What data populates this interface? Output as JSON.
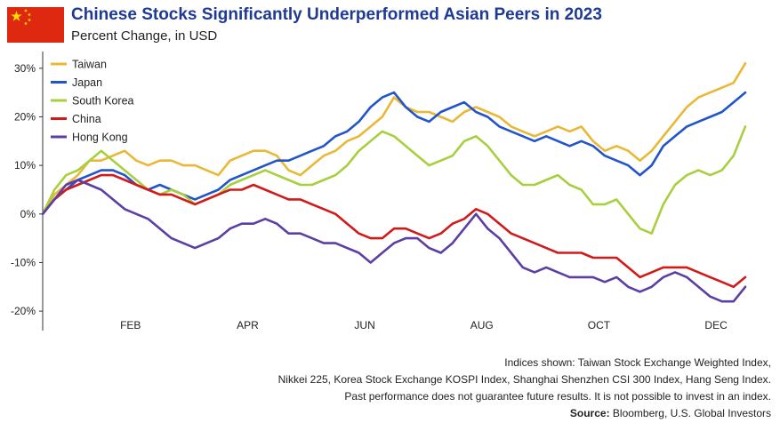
{
  "header": {
    "title": "Chinese Stocks Significantly Underperformed Asian Peers in 2023",
    "subtitle": "Percent Change, in USD",
    "flag_icon": "china-flag-icon",
    "flag_color": "#de2910",
    "star_color": "#ffde00"
  },
  "notes": {
    "line1": "Indices shown: Taiwan Stock Exchange Weighted Index,",
    "line2": "Nikkei 225, Korea Stock Exchange KOSPI Index, Shanghai Shenzhen CSI 300 Index, Hang Seng Index.",
    "line3": "Past performance does not guarantee future results. It is not possible to invest in an index.",
    "source_label": "Source:",
    "source_text": " Bloomberg, U.S. Global Investors"
  },
  "chart_data": {
    "type": "line",
    "title": "Chinese Stocks Significantly Underperformed Asian Peers in 2023",
    "subtitle": "Percent Change, in USD",
    "xlabel": "",
    "ylabel": "",
    "x_ticks": [
      {
        "label": "FEB",
        "month": 1.5
      },
      {
        "label": "APR",
        "month": 3.5
      },
      {
        "label": "JUN",
        "month": 5.5
      },
      {
        "label": "AUG",
        "month": 7.5
      },
      {
        "label": "OCT",
        "month": 9.5
      },
      {
        "label": "DEC",
        "month": 11.5
      }
    ],
    "y_ticks": [
      {
        "label": "30%",
        "value": 30
      },
      {
        "label": "20%",
        "value": 20
      },
      {
        "label": "10%",
        "value": 10
      },
      {
        "label": "0%",
        "value": 0
      },
      {
        "label": "-10%",
        "value": -10
      },
      {
        "label": "-20%",
        "value": -20
      }
    ],
    "xlim": [
      0,
      12
    ],
    "ylim": [
      -24,
      36
    ],
    "grid": false,
    "legend_position": "top-left",
    "series": [
      {
        "name": "Taiwan",
        "color": "#e8b836",
        "points": [
          [
            0,
            0
          ],
          [
            0.2,
            4
          ],
          [
            0.4,
            6
          ],
          [
            0.6,
            8
          ],
          [
            0.8,
            11
          ],
          [
            1.0,
            11
          ],
          [
            1.2,
            12
          ],
          [
            1.4,
            13
          ],
          [
            1.6,
            11
          ],
          [
            1.8,
            10
          ],
          [
            2.0,
            11
          ],
          [
            2.2,
            11
          ],
          [
            2.4,
            10
          ],
          [
            2.6,
            10
          ],
          [
            2.8,
            9
          ],
          [
            3.0,
            8
          ],
          [
            3.2,
            11
          ],
          [
            3.4,
            12
          ],
          [
            3.6,
            13
          ],
          [
            3.8,
            13
          ],
          [
            4.0,
            12
          ],
          [
            4.2,
            9
          ],
          [
            4.4,
            8
          ],
          [
            4.6,
            10
          ],
          [
            4.8,
            12
          ],
          [
            5.0,
            13
          ],
          [
            5.2,
            15
          ],
          [
            5.4,
            16
          ],
          [
            5.6,
            18
          ],
          [
            5.8,
            20
          ],
          [
            6.0,
            24
          ],
          [
            6.2,
            22
          ],
          [
            6.4,
            21
          ],
          [
            6.6,
            21
          ],
          [
            6.8,
            20
          ],
          [
            7.0,
            19
          ],
          [
            7.2,
            21
          ],
          [
            7.4,
            22
          ],
          [
            7.6,
            21
          ],
          [
            7.8,
            20
          ],
          [
            8.0,
            18
          ],
          [
            8.2,
            17
          ],
          [
            8.4,
            16
          ],
          [
            8.6,
            17
          ],
          [
            8.8,
            18
          ],
          [
            9.0,
            17
          ],
          [
            9.2,
            18
          ],
          [
            9.4,
            15
          ],
          [
            9.6,
            13
          ],
          [
            9.8,
            14
          ],
          [
            10.0,
            13
          ],
          [
            10.2,
            11
          ],
          [
            10.4,
            13
          ],
          [
            10.6,
            16
          ],
          [
            10.8,
            19
          ],
          [
            11.0,
            22
          ],
          [
            11.2,
            24
          ],
          [
            11.4,
            25
          ],
          [
            11.6,
            26
          ],
          [
            11.8,
            27
          ],
          [
            12.0,
            31
          ]
        ]
      },
      {
        "name": "Japan",
        "color": "#2155c9",
        "points": [
          [
            0,
            0
          ],
          [
            0.2,
            3
          ],
          [
            0.4,
            5
          ],
          [
            0.6,
            7
          ],
          [
            0.8,
            8
          ],
          [
            1.0,
            9
          ],
          [
            1.2,
            9
          ],
          [
            1.4,
            8
          ],
          [
            1.6,
            6
          ],
          [
            1.8,
            5
          ],
          [
            2.0,
            6
          ],
          [
            2.2,
            5
          ],
          [
            2.4,
            4
          ],
          [
            2.6,
            3
          ],
          [
            2.8,
            4
          ],
          [
            3.0,
            5
          ],
          [
            3.2,
            7
          ],
          [
            3.4,
            8
          ],
          [
            3.6,
            9
          ],
          [
            3.8,
            10
          ],
          [
            4.0,
            11
          ],
          [
            4.2,
            11
          ],
          [
            4.4,
            12
          ],
          [
            4.6,
            13
          ],
          [
            4.8,
            14
          ],
          [
            5.0,
            16
          ],
          [
            5.2,
            17
          ],
          [
            5.4,
            19
          ],
          [
            5.6,
            22
          ],
          [
            5.8,
            24
          ],
          [
            6.0,
            25
          ],
          [
            6.2,
            22
          ],
          [
            6.4,
            20
          ],
          [
            6.6,
            19
          ],
          [
            6.8,
            21
          ],
          [
            7.0,
            22
          ],
          [
            7.2,
            23
          ],
          [
            7.4,
            21
          ],
          [
            7.6,
            20
          ],
          [
            7.8,
            18
          ],
          [
            8.0,
            17
          ],
          [
            8.2,
            16
          ],
          [
            8.4,
            15
          ],
          [
            8.6,
            16
          ],
          [
            8.8,
            15
          ],
          [
            9.0,
            14
          ],
          [
            9.2,
            15
          ],
          [
            9.4,
            14
          ],
          [
            9.6,
            12
          ],
          [
            9.8,
            11
          ],
          [
            10.0,
            10
          ],
          [
            10.2,
            8
          ],
          [
            10.4,
            10
          ],
          [
            10.6,
            14
          ],
          [
            10.8,
            16
          ],
          [
            11.0,
            18
          ],
          [
            11.2,
            19
          ],
          [
            11.4,
            20
          ],
          [
            11.6,
            21
          ],
          [
            11.8,
            23
          ],
          [
            12.0,
            25
          ]
        ]
      },
      {
        "name": "South Korea",
        "color": "#a8cf3d",
        "points": [
          [
            0,
            0
          ],
          [
            0.2,
            5
          ],
          [
            0.4,
            8
          ],
          [
            0.6,
            9
          ],
          [
            0.8,
            11
          ],
          [
            1.0,
            13
          ],
          [
            1.2,
            11
          ],
          [
            1.4,
            9
          ],
          [
            1.6,
            7
          ],
          [
            1.8,
            5
          ],
          [
            2.0,
            4
          ],
          [
            2.2,
            5
          ],
          [
            2.4,
            4
          ],
          [
            2.6,
            2
          ],
          [
            2.8,
            3
          ],
          [
            3.0,
            4
          ],
          [
            3.2,
            6
          ],
          [
            3.4,
            7
          ],
          [
            3.6,
            8
          ],
          [
            3.8,
            9
          ],
          [
            4.0,
            8
          ],
          [
            4.2,
            7
          ],
          [
            4.4,
            6
          ],
          [
            4.6,
            6
          ],
          [
            4.8,
            7
          ],
          [
            5.0,
            8
          ],
          [
            5.2,
            10
          ],
          [
            5.4,
            13
          ],
          [
            5.6,
            15
          ],
          [
            5.8,
            17
          ],
          [
            6.0,
            16
          ],
          [
            6.2,
            14
          ],
          [
            6.4,
            12
          ],
          [
            6.6,
            10
          ],
          [
            6.8,
            11
          ],
          [
            7.0,
            12
          ],
          [
            7.2,
            15
          ],
          [
            7.4,
            16
          ],
          [
            7.6,
            14
          ],
          [
            7.8,
            11
          ],
          [
            8.0,
            8
          ],
          [
            8.2,
            6
          ],
          [
            8.4,
            6
          ],
          [
            8.6,
            7
          ],
          [
            8.8,
            8
          ],
          [
            9.0,
            6
          ],
          [
            9.2,
            5
          ],
          [
            9.4,
            2
          ],
          [
            9.6,
            2
          ],
          [
            9.8,
            3
          ],
          [
            10.0,
            0
          ],
          [
            10.2,
            -3
          ],
          [
            10.4,
            -4
          ],
          [
            10.6,
            2
          ],
          [
            10.8,
            6
          ],
          [
            11.0,
            8
          ],
          [
            11.2,
            9
          ],
          [
            11.4,
            8
          ],
          [
            11.6,
            9
          ],
          [
            11.8,
            12
          ],
          [
            12.0,
            18
          ]
        ]
      },
      {
        "name": "China",
        "color": "#d11a1a",
        "points": [
          [
            0,
            0
          ],
          [
            0.2,
            3
          ],
          [
            0.4,
            5
          ],
          [
            0.6,
            6
          ],
          [
            0.8,
            7
          ],
          [
            1.0,
            8
          ],
          [
            1.2,
            8
          ],
          [
            1.4,
            7
          ],
          [
            1.6,
            6
          ],
          [
            1.8,
            5
          ],
          [
            2.0,
            4
          ],
          [
            2.2,
            4
          ],
          [
            2.4,
            3
          ],
          [
            2.6,
            2
          ],
          [
            2.8,
            3
          ],
          [
            3.0,
            4
          ],
          [
            3.2,
            5
          ],
          [
            3.4,
            5
          ],
          [
            3.6,
            6
          ],
          [
            3.8,
            5
          ],
          [
            4.0,
            4
          ],
          [
            4.2,
            3
          ],
          [
            4.4,
            3
          ],
          [
            4.6,
            2
          ],
          [
            4.8,
            1
          ],
          [
            5.0,
            0
          ],
          [
            5.2,
            -2
          ],
          [
            5.4,
            -4
          ],
          [
            5.6,
            -5
          ],
          [
            5.8,
            -5
          ],
          [
            6.0,
            -3
          ],
          [
            6.2,
            -3
          ],
          [
            6.4,
            -4
          ],
          [
            6.6,
            -5
          ],
          [
            6.8,
            -4
          ],
          [
            7.0,
            -2
          ],
          [
            7.2,
            -1
          ],
          [
            7.4,
            1
          ],
          [
            7.6,
            0
          ],
          [
            7.8,
            -2
          ],
          [
            8.0,
            -4
          ],
          [
            8.2,
            -5
          ],
          [
            8.4,
            -6
          ],
          [
            8.6,
            -7
          ],
          [
            8.8,
            -8
          ],
          [
            9.0,
            -8
          ],
          [
            9.2,
            -8
          ],
          [
            9.4,
            -9
          ],
          [
            9.6,
            -9
          ],
          [
            9.8,
            -9
          ],
          [
            10.0,
            -11
          ],
          [
            10.2,
            -13
          ],
          [
            10.4,
            -12
          ],
          [
            10.6,
            -11
          ],
          [
            10.8,
            -11
          ],
          [
            11.0,
            -11
          ],
          [
            11.2,
            -12
          ],
          [
            11.4,
            -13
          ],
          [
            11.6,
            -14
          ],
          [
            11.8,
            -15
          ],
          [
            12.0,
            -13
          ]
        ]
      },
      {
        "name": "Hong Kong",
        "color": "#5c3fa3",
        "points": [
          [
            0,
            0
          ],
          [
            0.2,
            3
          ],
          [
            0.4,
            6
          ],
          [
            0.6,
            7
          ],
          [
            0.8,
            6
          ],
          [
            1.0,
            5
          ],
          [
            1.2,
            3
          ],
          [
            1.4,
            1
          ],
          [
            1.6,
            0
          ],
          [
            1.8,
            -1
          ],
          [
            2.0,
            -3
          ],
          [
            2.2,
            -5
          ],
          [
            2.4,
            -6
          ],
          [
            2.6,
            -7
          ],
          [
            2.8,
            -6
          ],
          [
            3.0,
            -5
          ],
          [
            3.2,
            -3
          ],
          [
            3.4,
            -2
          ],
          [
            3.6,
            -2
          ],
          [
            3.8,
            -1
          ],
          [
            4.0,
            -2
          ],
          [
            4.2,
            -4
          ],
          [
            4.4,
            -4
          ],
          [
            4.6,
            -5
          ],
          [
            4.8,
            -6
          ],
          [
            5.0,
            -6
          ],
          [
            5.2,
            -7
          ],
          [
            5.4,
            -8
          ],
          [
            5.6,
            -10
          ],
          [
            5.8,
            -8
          ],
          [
            6.0,
            -6
          ],
          [
            6.2,
            -5
          ],
          [
            6.4,
            -5
          ],
          [
            6.6,
            -7
          ],
          [
            6.8,
            -8
          ],
          [
            7.0,
            -6
          ],
          [
            7.2,
            -3
          ],
          [
            7.4,
            0
          ],
          [
            7.6,
            -3
          ],
          [
            7.8,
            -5
          ],
          [
            8.0,
            -8
          ],
          [
            8.2,
            -11
          ],
          [
            8.4,
            -12
          ],
          [
            8.6,
            -11
          ],
          [
            8.8,
            -12
          ],
          [
            9.0,
            -13
          ],
          [
            9.2,
            -13
          ],
          [
            9.4,
            -13
          ],
          [
            9.6,
            -14
          ],
          [
            9.8,
            -13
          ],
          [
            10.0,
            -15
          ],
          [
            10.2,
            -16
          ],
          [
            10.4,
            -15
          ],
          [
            10.6,
            -13
          ],
          [
            10.8,
            -12
          ],
          [
            11.0,
            -13
          ],
          [
            11.2,
            -15
          ],
          [
            11.4,
            -17
          ],
          [
            11.6,
            -18
          ],
          [
            11.8,
            -18
          ],
          [
            12.0,
            -15
          ]
        ]
      }
    ]
  }
}
